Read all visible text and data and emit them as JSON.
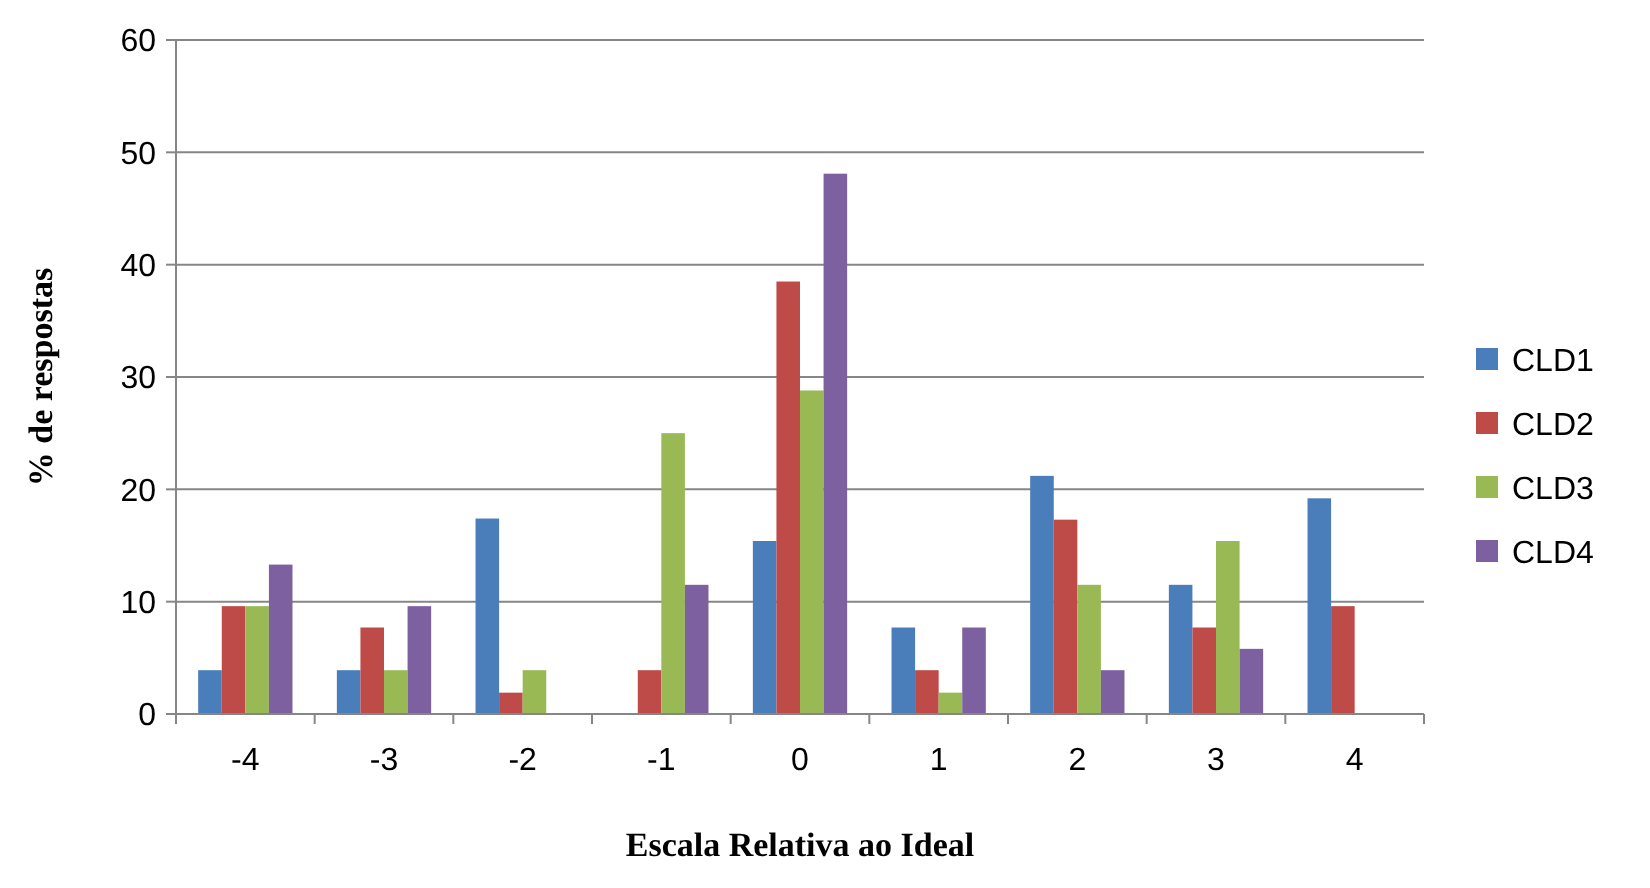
{
  "chart_data": {
    "type": "bar",
    "xlabel": "Escala Relativa ao Ideal",
    "ylabel": "% de respostas",
    "categories": [
      "-4",
      "-3",
      "-2",
      "-1",
      "0",
      "1",
      "2",
      "3",
      "4"
    ],
    "ylim": [
      0,
      60
    ],
    "yticks": [
      0,
      10,
      20,
      30,
      40,
      50,
      60
    ],
    "grid": "y",
    "legend": "right",
    "series": [
      {
        "name": "CLD1",
        "color": "#4a7ebb",
        "values": [
          3.9,
          3.9,
          17.4,
          0,
          15.4,
          7.7,
          21.2,
          11.5,
          19.2
        ]
      },
      {
        "name": "CLD2",
        "color": "#be4b48",
        "values": [
          9.6,
          7.7,
          1.9,
          3.9,
          38.5,
          3.9,
          17.3,
          7.7,
          9.6
        ]
      },
      {
        "name": "CLD3",
        "color": "#98b954",
        "values": [
          9.6,
          3.9,
          3.9,
          25,
          28.8,
          1.9,
          11.5,
          15.4,
          0
        ]
      },
      {
        "name": "CLD4",
        "color": "#7d60a0",
        "values": [
          13.3,
          9.6,
          0,
          11.5,
          48.1,
          7.7,
          3.9,
          5.8,
          0
        ]
      }
    ]
  }
}
